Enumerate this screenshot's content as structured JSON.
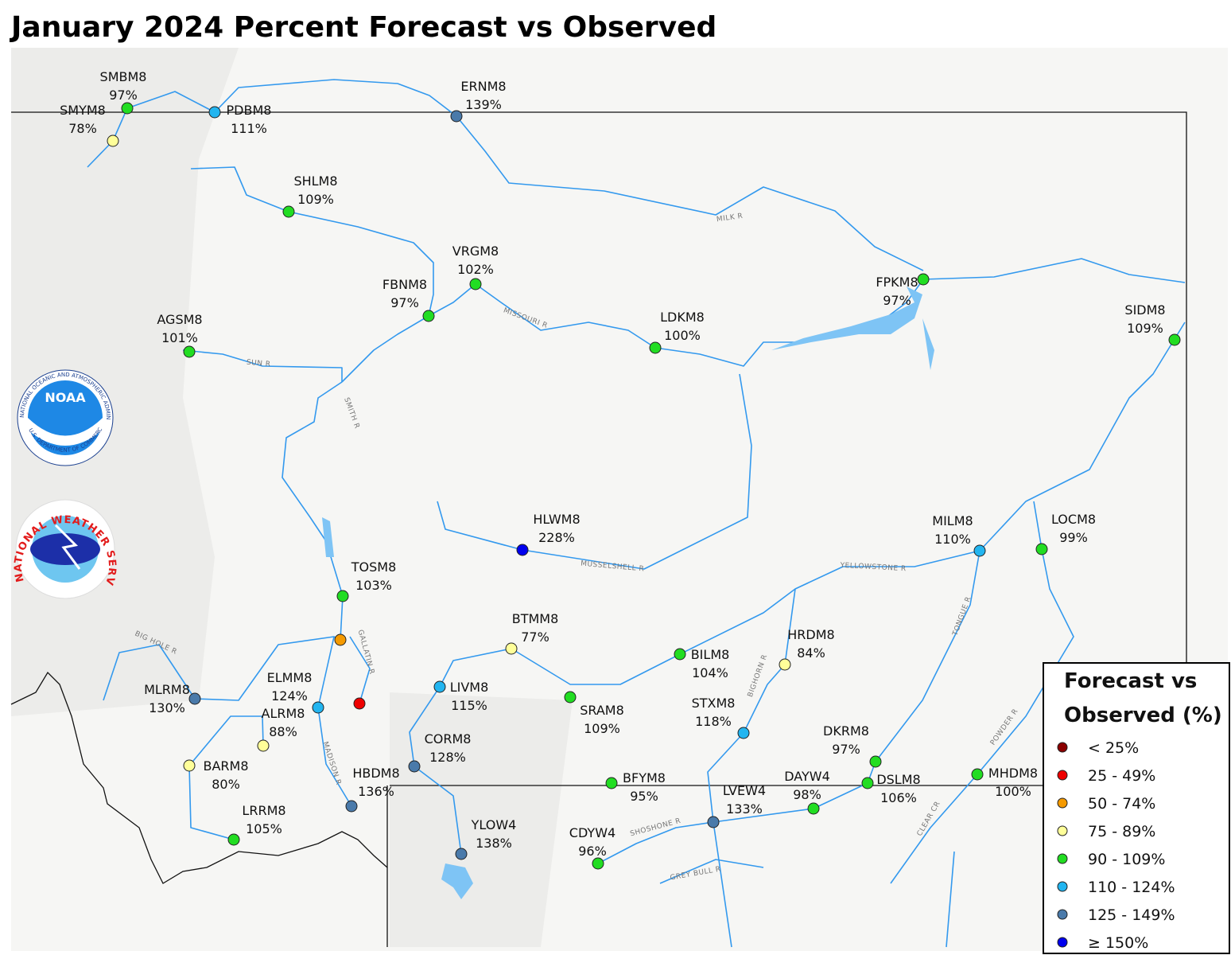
{
  "title": "January 2024 Percent Forecast vs Observed",
  "logos": {
    "noaa": "NOAA",
    "noaa_ring": "NATIONAL OCEANIC AND ATMOSPHERIC ADMINISTRATION",
    "noaa_ring_bottom": "U.S. DEPARTMENT OF COMMERCE",
    "nws": "NATIONAL WEATHER SERVICE"
  },
  "stations": [
    {
      "id": "SMBM8",
      "label": "97%",
      "color": "#22dd22"
    },
    {
      "id": "SMYM8",
      "label": "78%",
      "color": "#ffff99"
    },
    {
      "id": "PDBM8",
      "label": "111%",
      "color": "#22b5f0"
    },
    {
      "id": "ERNM8",
      "label": "139%",
      "color": "#4a7aaa"
    },
    {
      "id": "SHLM8",
      "label": "109%",
      "color": "#22dd22"
    },
    {
      "id": "VRGM8",
      "label": "102%",
      "color": "#22dd22"
    },
    {
      "id": "FBNM8",
      "label": "97%",
      "color": "#22dd22"
    },
    {
      "id": "AGSM8",
      "label": "101%",
      "color": "#22dd22"
    },
    {
      "id": "LDKM8",
      "label": "100%",
      "color": "#22dd22"
    },
    {
      "id": "FPKM8",
      "label": "97%",
      "color": "#22dd22"
    },
    {
      "id": "SIDM8",
      "label": "109%",
      "color": "#22dd22"
    },
    {
      "id": "HLWM8",
      "label": "228%",
      "color": "#0000ee"
    },
    {
      "id": "MILM8",
      "label": "110%",
      "color": "#22b5f0"
    },
    {
      "id": "LOCM8",
      "label": "99%",
      "color": "#22dd22"
    },
    {
      "id": "TOSM8",
      "label": "103%",
      "color": "#22dd22"
    },
    {
      "id": "BTMM8",
      "label": "77%",
      "color": "#ffff99"
    },
    {
      "id": "BILM8",
      "label": "104%",
      "color": "#22dd22"
    },
    {
      "id": "HRDM8",
      "label": "84%",
      "color": "#ffff99"
    },
    {
      "id": "MLRM8",
      "label": "130%",
      "color": "#4a7aaa"
    },
    {
      "id": "ELMM8",
      "label": "124%",
      "color": "#22b5f0"
    },
    {
      "id": "ALRM8",
      "label": "88%",
      "color": "#ffff99"
    },
    {
      "id": "LIVM8",
      "label": "115%",
      "color": "#22b5f0"
    },
    {
      "id": "SRAM8",
      "label": "109%",
      "color": "#22dd22"
    },
    {
      "id": "STXM8",
      "label": "118%",
      "color": "#22b5f0"
    },
    {
      "id": "CORM8",
      "label": "128%",
      "color": "#4a7aaa"
    },
    {
      "id": "DKRM8",
      "label": "97%",
      "color": "#22dd22"
    },
    {
      "id": "BARM8",
      "label": "80%",
      "color": "#ffff99"
    },
    {
      "id": "BFYM8",
      "label": "95%",
      "color": "#22dd22"
    },
    {
      "id": "DAYW4",
      "label": "98%",
      "color": "#22dd22"
    },
    {
      "id": "DSLM8",
      "label": "106%",
      "color": "#22dd22"
    },
    {
      "id": "MHDM8",
      "label": "100%",
      "color": "#22dd22"
    },
    {
      "id": "HBDM8",
      "label": "136%",
      "color": "#4a7aaa"
    },
    {
      "id": "LVEW4",
      "label": "133%",
      "color": "#4a7aaa"
    },
    {
      "id": "LRRM8",
      "label": "105%",
      "color": "#22dd22"
    },
    {
      "id": "YLOW4",
      "label": "138%",
      "color": "#4a7aaa"
    },
    {
      "id": "CDYW4",
      "label": "96%",
      "color": "#22dd22"
    },
    {
      "color": "#f59a00"
    },
    {
      "color": "#ee0000"
    }
  ],
  "rivers": [
    "MILK R",
    "MISSOURI R",
    "SUN R",
    "SMITH R",
    "MUSSELSHELL R",
    "YELLOWSTONE R",
    "BIG HOLE R",
    "GALLATIN R",
    "MADISON R",
    "BIGHORN R",
    "TONGUE R",
    "POWDER R",
    "SHOSHONE R",
    "GREY BULL R",
    "CLEAR CR"
  ],
  "legend": {
    "title_line1": "Forecast vs",
    "title_line2": "Observed (%)",
    "items": [
      {
        "label": "< 25%",
        "color": "#8b0000"
      },
      {
        "label": "25 - 49%",
        "color": "#ee0000"
      },
      {
        "label": "50 - 74%",
        "color": "#f59a00"
      },
      {
        "label": "75 - 89%",
        "color": "#ffff99"
      },
      {
        "label": "90 - 109%",
        "color": "#22dd22"
      },
      {
        "label": "110 - 124%",
        "color": "#22b5f0"
      },
      {
        "label": "125 - 149%",
        "color": "#4a7aaa"
      },
      {
        "label": "≥ 150%",
        "color": "#0000ee"
      }
    ]
  }
}
